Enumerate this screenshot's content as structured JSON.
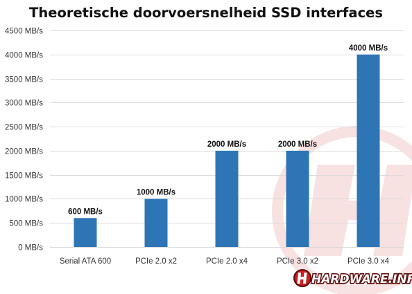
{
  "chart_data": {
    "type": "bar",
    "title": "Theoretische doorvoersnelheid SSD interfaces",
    "categories": [
      "Serial ATA 600",
      "PCIe 2.0 x2",
      "PCIe 2.0 x4",
      "PCIe 3.0 x2",
      "PCIe 3.0 x4"
    ],
    "values": [
      600,
      1000,
      2000,
      2000,
      4000
    ],
    "data_labels": [
      "600 MB/s",
      "1000 MB/s",
      "2000 MB/s",
      "2000 MB/s",
      "4000 MB/s"
    ],
    "y_ticks": [
      0,
      500,
      1000,
      1500,
      2000,
      2500,
      3000,
      3500,
      4000,
      4500
    ],
    "y_tick_labels": [
      "0 MB/s",
      "500 MB/s",
      "1000 MB/s",
      "1500 MB/s",
      "2000 MB/s",
      "2500 MB/s",
      "3000 MB/s",
      "3500 MB/s",
      "4000 MB/s",
      "4500 MB/s"
    ],
    "ylim": [
      0,
      4500
    ],
    "xlabel": "",
    "ylabel": "",
    "grid": true,
    "legend": "none",
    "bar_color": "#2e75b6"
  },
  "watermark": {
    "logo_text": "HARDWARE.INFO",
    "primary_color": "#cc1f1f",
    "dark_color": "#5a0a0a",
    "icon": "hardware-info-logo-icon"
  }
}
